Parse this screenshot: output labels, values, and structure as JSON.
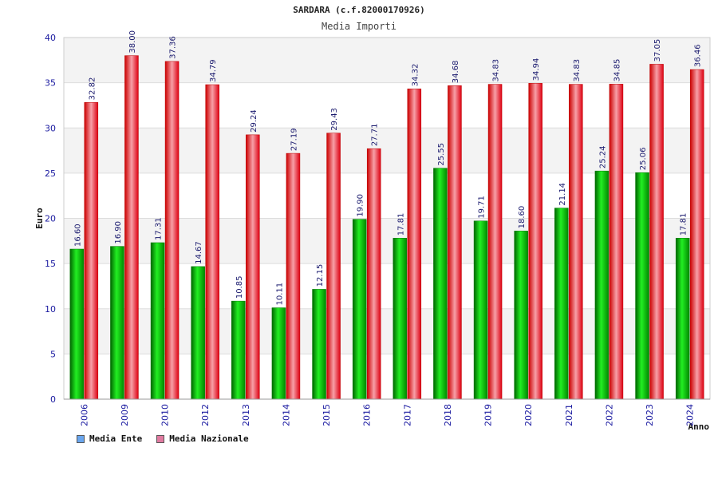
{
  "chart_data": {
    "type": "bar",
    "title": "SARDARA (c.f.82000170926)",
    "subtitle": "Media Importi",
    "xlabel": "Anno",
    "ylabel": "Euro",
    "ylim": [
      0,
      40
    ],
    "yticks": [
      0,
      5,
      10,
      15,
      20,
      25,
      30,
      35,
      40
    ],
    "categories": [
      "2006",
      "2009",
      "2010",
      "2012",
      "2013",
      "2014",
      "2015",
      "2016",
      "2017",
      "2018",
      "2019",
      "2020",
      "2021",
      "2022",
      "2023",
      "2024"
    ],
    "series": [
      {
        "name": "Media Ente",
        "color": "#00cc00",
        "values": [
          16.6,
          16.9,
          17.31,
          14.67,
          10.85,
          10.11,
          12.15,
          19.9,
          17.81,
          25.55,
          19.71,
          18.6,
          21.14,
          25.24,
          25.06,
          17.81
        ],
        "labels": [
          "16.60",
          "16.90",
          "17.31",
          "14.67",
          "10.85",
          "10.11",
          "12.15",
          "19.90",
          "17.81",
          "25.55",
          "19.71",
          "18.60",
          "21.14",
          "25.24",
          "25.06",
          "17.81"
        ]
      },
      {
        "name": "Media Nazionale",
        "color": "#ee1122",
        "values": [
          32.82,
          38.0,
          37.36,
          34.79,
          29.24,
          27.19,
          29.43,
          27.71,
          34.32,
          34.68,
          34.83,
          34.94,
          34.83,
          34.85,
          37.05,
          36.46
        ],
        "labels": [
          "32.82",
          "38.00",
          "37.36",
          "34.79",
          "29.24",
          "27.19",
          "29.43",
          "27.71",
          "34.32",
          "34.68",
          "34.83",
          "34.94",
          "34.83",
          "34.85",
          "37.05",
          "36.46"
        ]
      }
    ],
    "legend": [
      {
        "label": "Media Ente",
        "color": "#6aa6ee"
      },
      {
        "label": "Media Nazionale",
        "color": "#e07aa0"
      }
    ]
  }
}
